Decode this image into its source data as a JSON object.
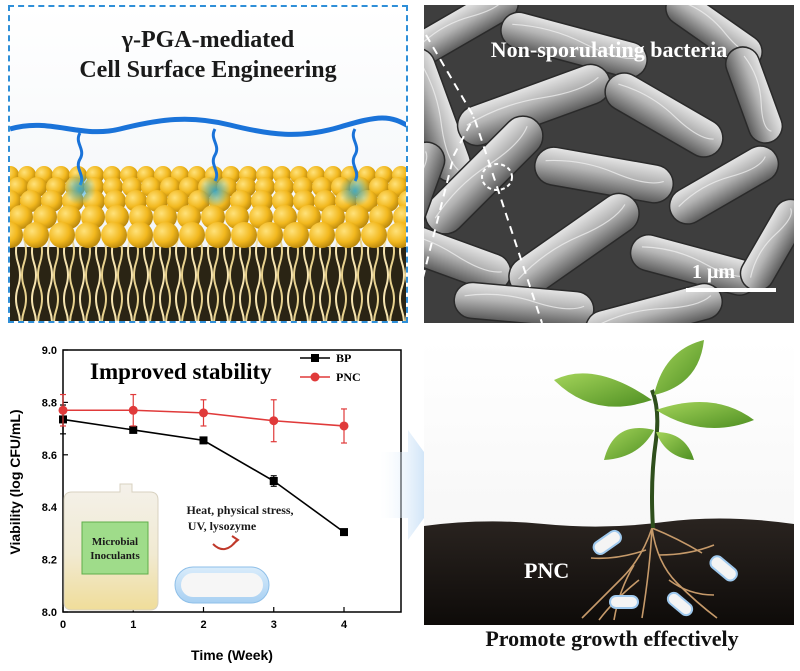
{
  "top_left": {
    "title_line1": "γ-PGA-mediated",
    "title_line2": "Cell Surface Engineering"
  },
  "top_right": {
    "title": "Non-sporulating bacteria",
    "scale_bar_label": "1 μm"
  },
  "chart_data": {
    "type": "line",
    "title": "Improved stability",
    "xlabel": "Time (Week)",
    "ylabel": "Viability (log CFU/mL)",
    "x": [
      0,
      1,
      2,
      3,
      4
    ],
    "xlim": [
      0,
      4
    ],
    "ylim": [
      8.0,
      9.0
    ],
    "yticks": [
      "8.0",
      "8.2",
      "8.4",
      "8.6",
      "8.8",
      "9.0"
    ],
    "xticks": [
      "0",
      "1",
      "2",
      "3",
      "4"
    ],
    "legend_position": "top-right",
    "series": [
      {
        "name": "BP",
        "color": "#000000",
        "marker": "square",
        "values": [
          8.735,
          8.695,
          8.655,
          8.5,
          8.305
        ],
        "errors": [
          0.055,
          0.01,
          0.008,
          0.02,
          0.008
        ]
      },
      {
        "name": "PNC",
        "color": "#e03a3a",
        "marker": "circle",
        "values": [
          8.77,
          8.77,
          8.76,
          8.73,
          8.71
        ],
        "errors": [
          0.06,
          0.06,
          0.05,
          0.08,
          0.065
        ]
      }
    ],
    "inset": {
      "bottle_label_line1": "Microbial",
      "bottle_label_line2": "Inoculants",
      "stress_line1": "Heat, physical stress,",
      "stress_line2": "UV,  lysozyme"
    }
  },
  "bottom_right": {
    "pnc_label": "PNC",
    "caption": "Promote growth effectively"
  },
  "colors": {
    "dashed_border": "#2f8fd8",
    "polymer_blue": "#1a73d9",
    "lipid_head": "#f2b81e",
    "bp_line": "#000000",
    "pnc_line": "#e03a3a",
    "arrow": "#9ec8f0"
  }
}
